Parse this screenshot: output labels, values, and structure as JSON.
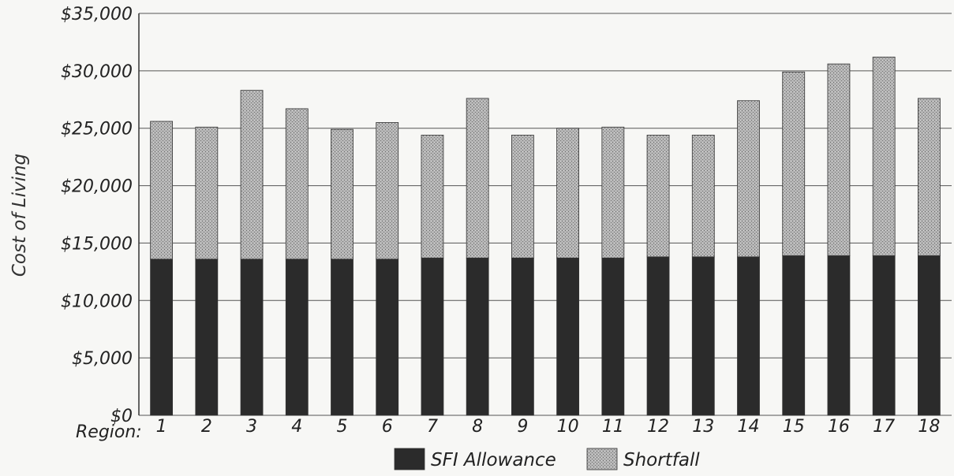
{
  "chart_data": {
    "type": "bar",
    "stacked": true,
    "ylabel": "Cost of Living",
    "x_prefix_label": "Region:",
    "categories": [
      "1",
      "2",
      "3",
      "4",
      "5",
      "6",
      "7",
      "8",
      "9",
      "10",
      "11",
      "12",
      "13",
      "14",
      "15",
      "16",
      "17",
      "18"
    ],
    "ylim": [
      0,
      35000
    ],
    "yticks": [
      0,
      5000,
      10000,
      15000,
      20000,
      25000,
      30000,
      35000
    ],
    "ytick_labels": [
      "$0",
      "$5,000",
      "$10,000",
      "$15,000",
      "$20,000",
      "$25,000",
      "$30,000",
      "$35,000"
    ],
    "grid": true,
    "legend_position": "bottom-center",
    "series": [
      {
        "name": "SFI Allowance",
        "color": "#2b2b2b",
        "values": [
          13600,
          13600,
          13600,
          13600,
          13600,
          13600,
          13700,
          13700,
          13700,
          13700,
          13700,
          13800,
          13800,
          13800,
          13900,
          13900,
          13900,
          13900
        ]
      },
      {
        "name": "Shortfall",
        "color": "#a9a9a9",
        "values": [
          12000,
          11500,
          14700,
          13100,
          11300,
          11900,
          10700,
          13900,
          10700,
          11300,
          11400,
          10600,
          10600,
          13600,
          16000,
          16700,
          17300,
          13700
        ]
      }
    ]
  }
}
